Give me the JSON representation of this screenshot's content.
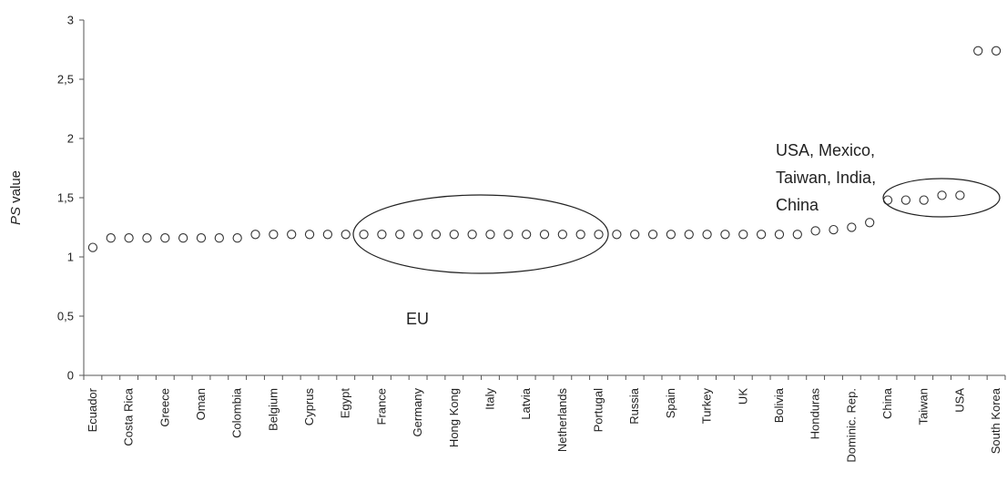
{
  "chart_data": {
    "type": "scatter",
    "ylabel_italic": "PS",
    "ylabel_rest": " value",
    "ylim": [
      0,
      3
    ],
    "yticks": [
      "0",
      "0,5",
      "1",
      "1,5",
      "2",
      "2,5",
      "3"
    ],
    "ytick_values": [
      0,
      0.5,
      1,
      1.5,
      2,
      2.5,
      3
    ],
    "grid": false,
    "x_labels": [
      {
        "index": 0,
        "text": "Ecuador"
      },
      {
        "index": 2,
        "text": "Costa Rica"
      },
      {
        "index": 4,
        "text": "Greece"
      },
      {
        "index": 6,
        "text": "Oman"
      },
      {
        "index": 8,
        "text": "Colombia"
      },
      {
        "index": 10,
        "text": "Belgium"
      },
      {
        "index": 12,
        "text": "Cyprus"
      },
      {
        "index": 14,
        "text": "Egypt"
      },
      {
        "index": 16,
        "text": "France"
      },
      {
        "index": 18,
        "text": "Germany"
      },
      {
        "index": 20,
        "text": "Hong Kong"
      },
      {
        "index": 22,
        "text": "Italy"
      },
      {
        "index": 24,
        "text": "Latvia"
      },
      {
        "index": 26,
        "text": "Netherlands"
      },
      {
        "index": 28,
        "text": "Portugal"
      },
      {
        "index": 30,
        "text": "Russia"
      },
      {
        "index": 32,
        "text": "Spain"
      },
      {
        "index": 34,
        "text": "Turkey"
      },
      {
        "index": 36,
        "text": "UK"
      },
      {
        "index": 38,
        "text": "Bolivia"
      },
      {
        "index": 40,
        "text": "Honduras"
      },
      {
        "index": 42,
        "text": "Dominic. Rep."
      },
      {
        "index": 44,
        "text": "China"
      },
      {
        "index": 46,
        "text": "Taiwan"
      },
      {
        "index": 48,
        "text": "USA"
      },
      {
        "index": 50,
        "text": "South Korea"
      }
    ],
    "values": [
      1.08,
      1.16,
      1.16,
      1.16,
      1.16,
      1.16,
      1.16,
      1.16,
      1.16,
      1.19,
      1.19,
      1.19,
      1.19,
      1.19,
      1.19,
      1.19,
      1.19,
      1.19,
      1.19,
      1.19,
      1.19,
      1.19,
      1.19,
      1.19,
      1.19,
      1.19,
      1.19,
      1.19,
      1.19,
      1.19,
      1.19,
      1.19,
      1.19,
      1.19,
      1.19,
      1.19,
      1.19,
      1.19,
      1.19,
      1.19,
      1.22,
      1.23,
      1.25,
      1.29,
      1.48,
      1.48,
      1.48,
      1.52,
      1.52,
      2.74,
      2.74
    ],
    "annotations": {
      "eu_label": "EU",
      "group_label_lines": [
        "USA, Mexico,",
        "Taiwan, India,",
        "China"
      ]
    }
  }
}
